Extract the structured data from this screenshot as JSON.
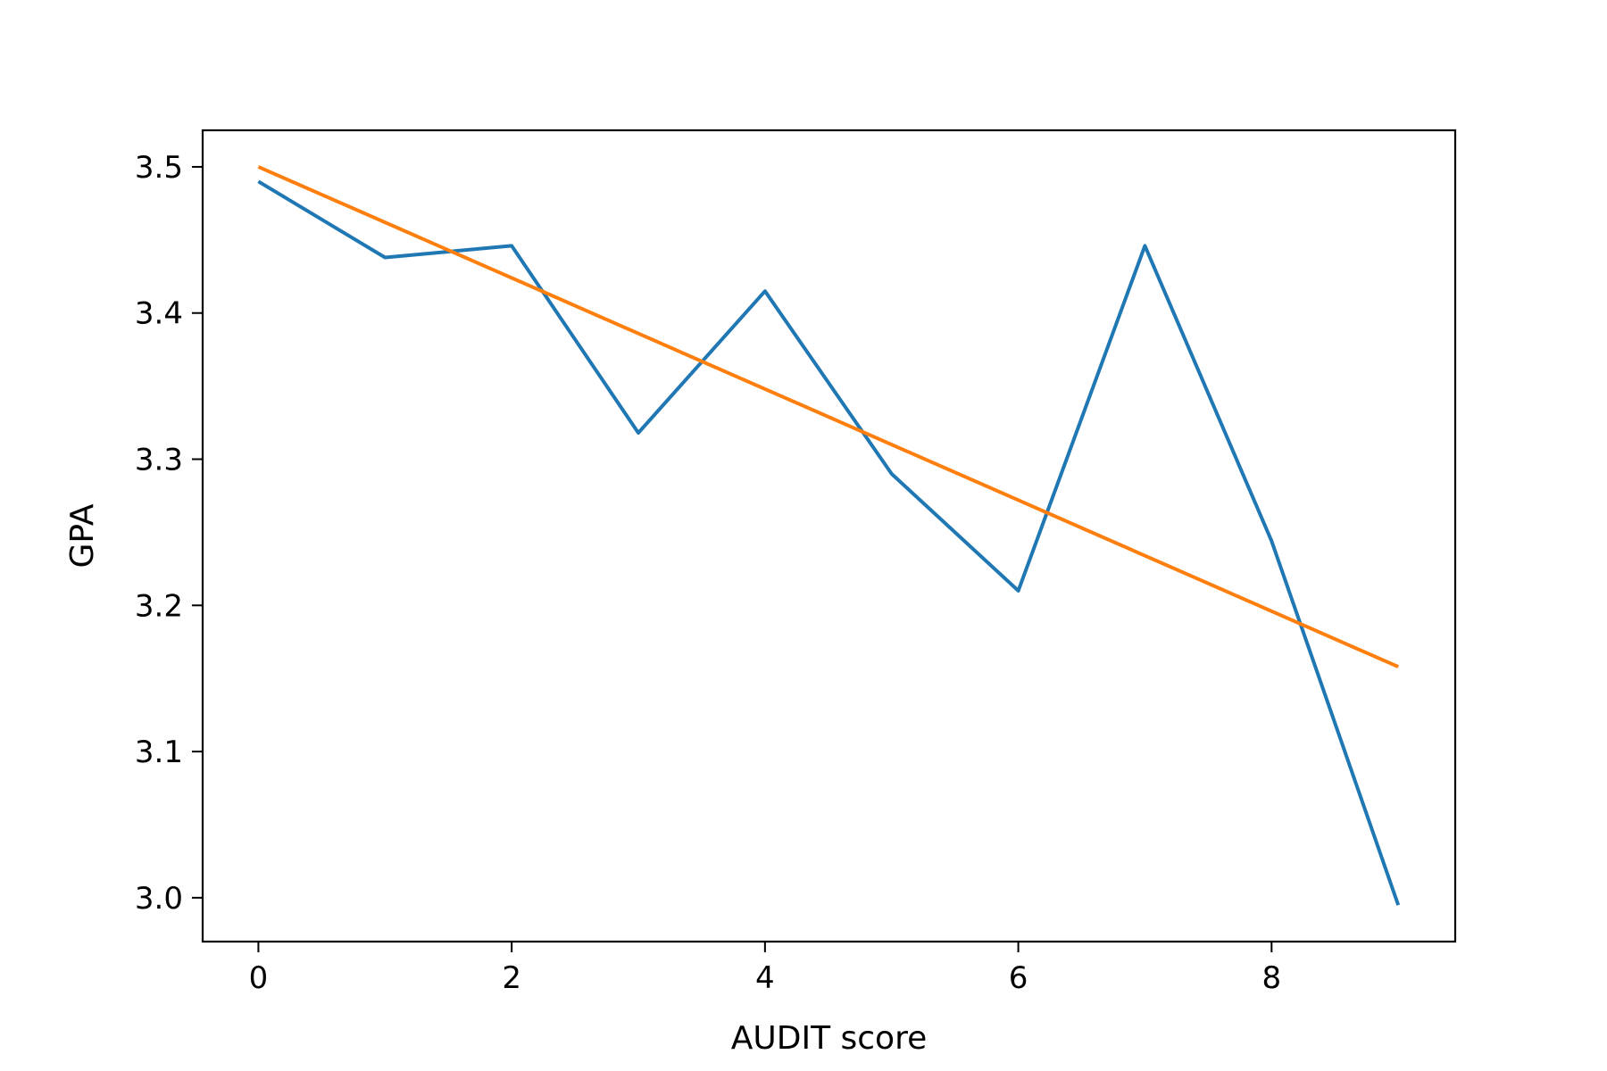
{
  "chart_data": {
    "type": "line",
    "title": "",
    "xlabel": "AUDIT score",
    "ylabel": "GPA",
    "xlim": [
      -0.44,
      9.45
    ],
    "ylim": [
      2.97,
      3.525
    ],
    "xticks": [
      0,
      2,
      4,
      6,
      8
    ],
    "yticks": [
      3.0,
      3.1,
      3.2,
      3.3,
      3.4,
      3.5
    ],
    "xtick_labels": [
      "0",
      "2",
      "4",
      "6",
      "8"
    ],
    "ytick_labels": [
      "3.0",
      "3.1",
      "3.2",
      "3.3",
      "3.4",
      "3.5"
    ],
    "grid": false,
    "series": [
      {
        "color": "#1f77b4",
        "x": [
          0,
          1,
          2,
          3,
          4,
          5,
          6,
          7,
          8,
          9
        ],
        "y": [
          3.49,
          3.438,
          3.446,
          3.318,
          3.415,
          3.29,
          3.21,
          3.446,
          3.244,
          2.995
        ]
      },
      {
        "color": "#ff7f0e",
        "x": [
          0,
          9
        ],
        "y": [
          3.5,
          3.158
        ]
      }
    ]
  }
}
